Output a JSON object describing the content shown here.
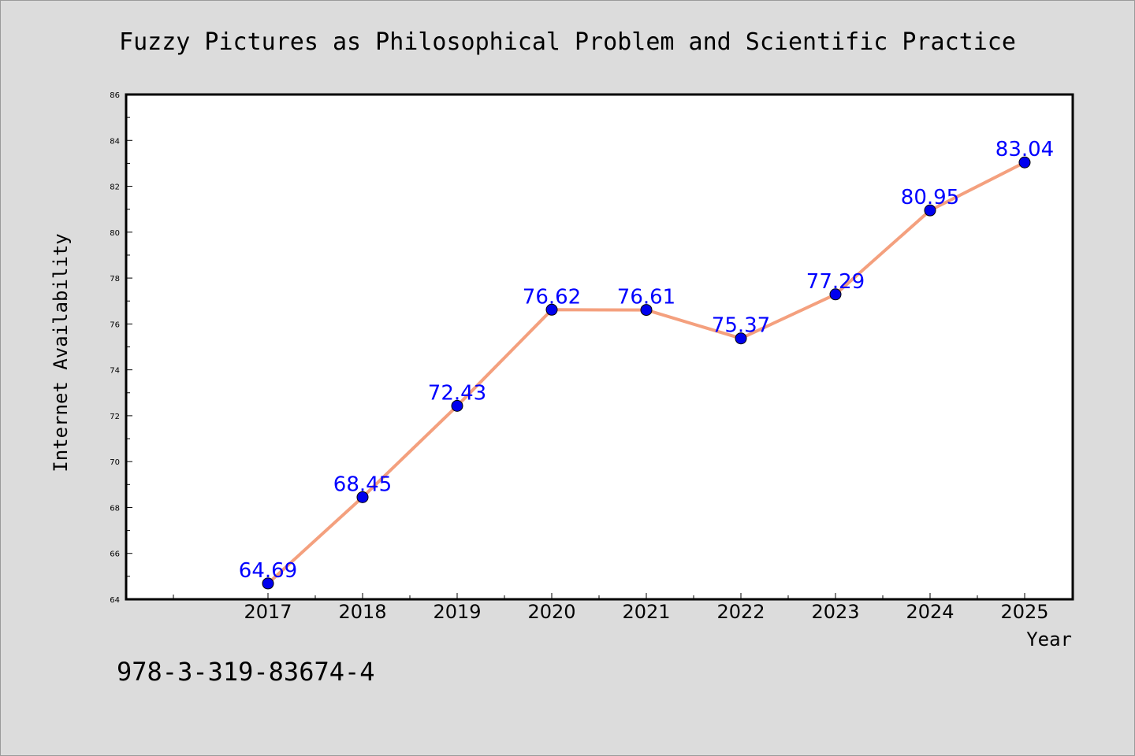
{
  "chart_data": {
    "type": "line",
    "title": "Fuzzy Pictures as Philosophical Problem and Scientific Practice",
    "xlabel": "Year",
    "ylabel": "Internet Availability",
    "categories": [
      "2017",
      "2018",
      "2019",
      "2020",
      "2021",
      "2022",
      "2023",
      "2024",
      "2025"
    ],
    "series": [
      {
        "values": [
          64.69,
          68.45,
          72.43,
          76.62,
          76.61,
          75.37,
          77.29,
          80.95,
          83.04
        ],
        "line_color": "#f4a07e",
        "marker_color": "#0000ee"
      }
    ],
    "data_labels": [
      "64.69",
      "68.45",
      "72.43",
      "76.62",
      "76.61",
      "75.37",
      "77.29",
      "80.95",
      "83.04"
    ],
    "ylim": [
      64,
      86
    ],
    "y_ticks": [
      "64",
      "66",
      "68",
      "70",
      "72",
      "74",
      "76",
      "78",
      "80",
      "82",
      "84",
      "86"
    ],
    "grid": false,
    "label_color": "#0000ff"
  },
  "footer": {
    "isbn": "978-3-319-83674-4"
  }
}
